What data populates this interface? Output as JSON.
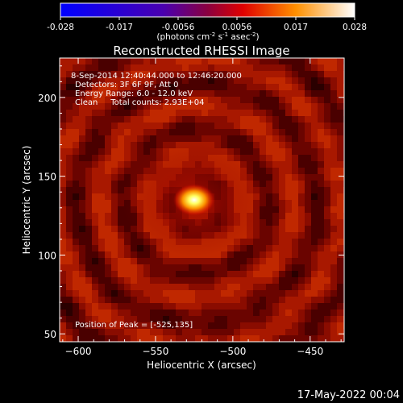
{
  "chart_data": {
    "type": "heatmap",
    "title": "Reconstructed RHESSI Image",
    "xlabel": "Heliocentric X (arcsec)",
    "ylabel": "Heliocentric Y (arcsec)",
    "xlim": [
      -612,
      -428
    ],
    "ylim": [
      45,
      225
    ],
    "x_ticks": [
      -600,
      -550,
      -500,
      -450
    ],
    "y_ticks": [
      50,
      100,
      150,
      200
    ],
    "colorbar": {
      "ticks": [
        "-0.028",
        "-0.017",
        "-0.0056",
        "0.0056",
        "0.017",
        "0.028"
      ],
      "range": [
        -0.028,
        0.028
      ],
      "unit_label": "(photons cm",
      "unit_exp1": "-2",
      "unit_mid": " s",
      "unit_exp2": "-1",
      "unit_mid2": " asec",
      "unit_exp3": "-2",
      "unit_close": ")"
    },
    "info_lines": [
      "8-Sep-2014 12:40:44.000 to 12:46:20.000",
      "Detectors: 3F 6F 9F, Att 0",
      "Energy Range: 6.0 - 12.0 keV",
      "Clean     Total counts: 2.93E+04"
    ],
    "peak_text": "Position of Peak = [-525,135]",
    "peak": {
      "x": -525,
      "y": 135,
      "value": 0.028
    },
    "background_level": 0.012,
    "colors": {
      "background": "#000000",
      "colormap": [
        "#0000ff",
        "#5000c0",
        "#b00060",
        "#ff0000",
        "#ff8c00",
        "#ffffff"
      ]
    }
  },
  "footer": {
    "date": "17-May-2022 00:04"
  }
}
